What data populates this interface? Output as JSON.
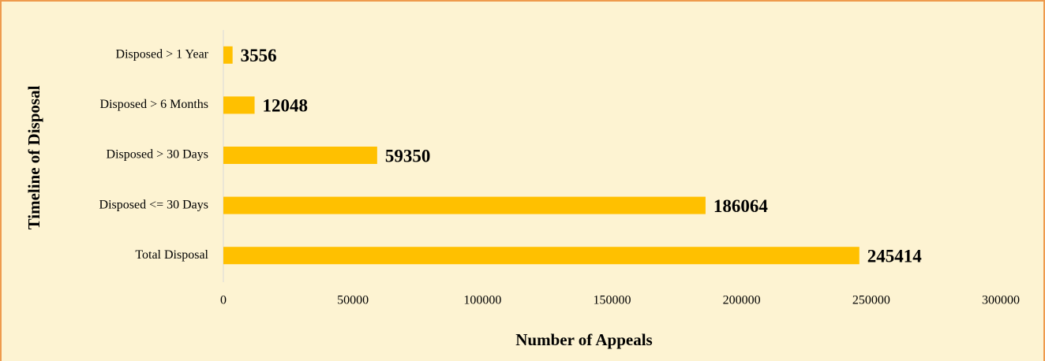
{
  "chart_data": {
    "type": "bar",
    "orientation": "horizontal",
    "xlabel": "Number of Appeals",
    "ylabel": "Timeline of Disposal",
    "categories": [
      "Disposed > 1 Year",
      "Disposed > 6 Months",
      "Disposed > 30 Days",
      "Disposed <= 30 Days",
      "Total Disposal"
    ],
    "values": [
      3556,
      12048,
      59350,
      186064,
      245414
    ],
    "color": "#ffc000",
    "xlim": [
      0,
      300000
    ],
    "xticks": [
      0,
      50000,
      100000,
      150000,
      200000,
      250000,
      300000
    ]
  }
}
